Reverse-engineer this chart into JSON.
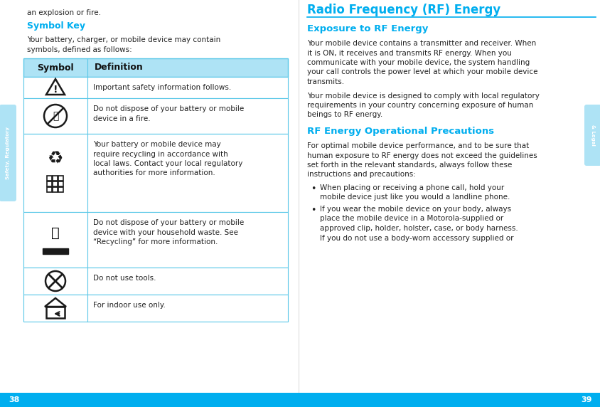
{
  "bg_color": "#ffffff",
  "cyan_color": "#00AEEF",
  "cyan_light": "#AEE3F5",
  "bottom_bar_color": "#00AEEF",
  "page_num_left": "38",
  "page_num_right": "39",
  "left_tab_text": "Safety, Regulatory",
  "right_tab_text": "& Legal",
  "top_left_text": "an explosion or fire.",
  "symbol_key_title": "Symbol Key",
  "symbol_key_body_1": "Your battery, charger, or mobile device may contain",
  "symbol_key_body_2": "symbols, defined as follows:",
  "table_header_1": "Symbol",
  "table_header_2": "Definition",
  "def_row1": "Important safety information follows.",
  "def_row2a": "Do not dispose of your battery or mobile",
  "def_row2b": "device in a fire.",
  "def_row3a": "Your battery or mobile device may",
  "def_row3b": "require recycling in accordance with",
  "def_row3c": "local laws. Contact your local regulatory",
  "def_row3d": "authorities for more information.",
  "def_row4a": "Do not dispose of your battery or mobile",
  "def_row4b": "device with your household waste. See",
  "def_row4c": "“Recycling” for more information.",
  "def_row5": "Do not use tools.",
  "def_row6": "For indoor use only.",
  "right_title": "Radio Frequency (RF) Energy",
  "right_subtitle1": "Exposure to RF Energy",
  "rp1_1": "Your mobile device contains a transmitter and receiver. When",
  "rp1_2": "it is ON, it receives and transmits RF energy. When you",
  "rp1_3": "communicate with your mobile device, the system handling",
  "rp1_4": "your call controls the power level at which your mobile device",
  "rp1_5": "transmits.",
  "rp2_1": "Your mobile device is designed to comply with local regulatory",
  "rp2_2": "requirements in your country concerning exposure of human",
  "rp2_3": "beings to RF energy.",
  "right_subtitle2": "RF Energy Operational Precautions",
  "rp3_1": "For optimal mobile device performance, and to be sure that",
  "rp3_2": "human exposure to RF energy does not exceed the guidelines",
  "rp3_3": "set forth in the relevant standards, always follow these",
  "rp3_4": "instructions and precautions:",
  "b1_1": "When placing or receiving a phone call, hold your",
  "b1_2": "mobile device just like you would a landline phone.",
  "b2_1": "If you wear the mobile device on your body, always",
  "b2_2": "place the mobile device in a Motorola-supplied or",
  "b2_3": "approved clip, holder, holster, case, or body harness.",
  "b2_4": "If you do not use a body-worn accessory supplied or"
}
